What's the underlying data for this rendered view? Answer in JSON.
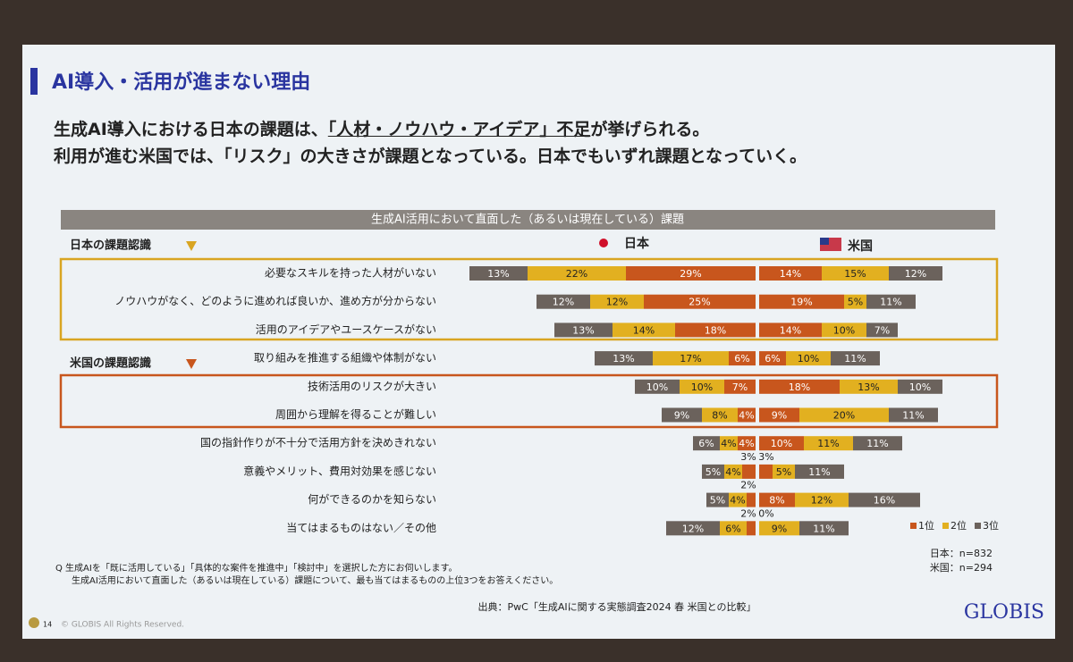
{
  "title": "AI導入・活用が進まない理由",
  "subtitle": {
    "line1": [
      "生成AI導入における日本の課題は、",
      "「人材・ノウハウ・アイデア」不足",
      "が挙げられる。"
    ],
    "line2": "利用が進む米国では、「リスク」の大きさが課題となっている。日本でもいずれ課題となっていく。"
  },
  "group_labels": [
    "日本の課題認識",
    "米国の課題認識"
  ],
  "chart_data": {
    "type": "bar",
    "title": "生成AI活用において直面した（あるいは現在している）課題",
    "categories": [
      "必要なスキルを持った人材がいない",
      "ノウハウがなく、どのように進めれば良いか、進め方が分からない",
      "活用のアイデアやユースケースがない",
      "取り組みを推進する組織や体制がない",
      "技術活用のリスクが大きい",
      "周囲から理解を得ることが難しい",
      "国の指針作りが不十分で活用方針を決めきれない",
      "意義やメリット、費用対効果を感じない",
      "何ができるのかを知らない",
      "当てはまるものはない／その他"
    ],
    "panels": [
      {
        "name": "日本",
        "series": [
          {
            "name": "1位",
            "color": "#c8561d",
            "values": [
              29,
              25,
              18,
              6,
              7,
              4,
              4,
              3,
              2,
              2
            ],
            "value_labels": [
              "29%",
              "25%",
              "18%",
              "6%",
              "7%",
              "4%",
              "4%",
              "3%",
              "2%",
              "2%"
            ]
          },
          {
            "name": "2位",
            "color": "#e2b020",
            "values": [
              22,
              12,
              14,
              17,
              10,
              8,
              4,
              4,
              4,
              6
            ],
            "value_labels": [
              "22%",
              "12%",
              "14%",
              "17%",
              "10%",
              "8%",
              "4%",
              "4%",
              "4%",
              "6%"
            ]
          },
          {
            "name": "3位",
            "color": "#6b625c",
            "values": [
              13,
              12,
              13,
              13,
              10,
              9,
              6,
              5,
              5,
              12
            ],
            "value_labels": [
              "13%",
              "12%",
              "13%",
              "13%",
              "10%",
              "9%",
              "6%",
              "5%",
              "5%",
              "12%"
            ]
          }
        ]
      },
      {
        "name": "米国",
        "series": [
          {
            "name": "1位",
            "color": "#c8561d",
            "values": [
              14,
              19,
              14,
              6,
              18,
              9,
              10,
              3,
              8,
              0
            ],
            "value_labels": [
              "14%",
              "19%",
              "14%",
              "6%",
              "18%",
              "9%",
              "10%",
              "3%",
              "8%",
              "0%"
            ]
          },
          {
            "name": "2位",
            "color": "#e2b020",
            "values": [
              15,
              5,
              10,
              10,
              13,
              20,
              11,
              5,
              12,
              9
            ],
            "value_labels": [
              "15%",
              "5%",
              "10%",
              "10%",
              "13%",
              "20%",
              "11%",
              "5%",
              "12%",
              "9%"
            ]
          },
          {
            "name": "3位",
            "color": "#6b625c",
            "values": [
              12,
              11,
              7,
              11,
              10,
              11,
              11,
              11,
              16,
              11
            ],
            "value_labels": [
              "12%",
              "11%",
              "7%",
              "11%",
              "10%",
              "11%",
              "11%",
              "11%",
              "16%",
              "11%"
            ]
          }
        ]
      }
    ],
    "sample_sizes": [
      "日本：n=832",
      "米国：n=294"
    ]
  },
  "footnotes": [
    "Q 生成AIを「既に活用している」「具体的な案件を推進中」「検討中」を選択した方にお伺いします。",
    "生成AI活用において直面した（あるいは現在している）課題について、最も当てはまるものの上位3つをお答えください。"
  ],
  "source": "出典：PwC「生成AIに関する実態調査2024 春 米国との比較」",
  "logo": "GLOBIS",
  "page_number": "14",
  "copyright": "© GLOBIS All Rights Reserved."
}
